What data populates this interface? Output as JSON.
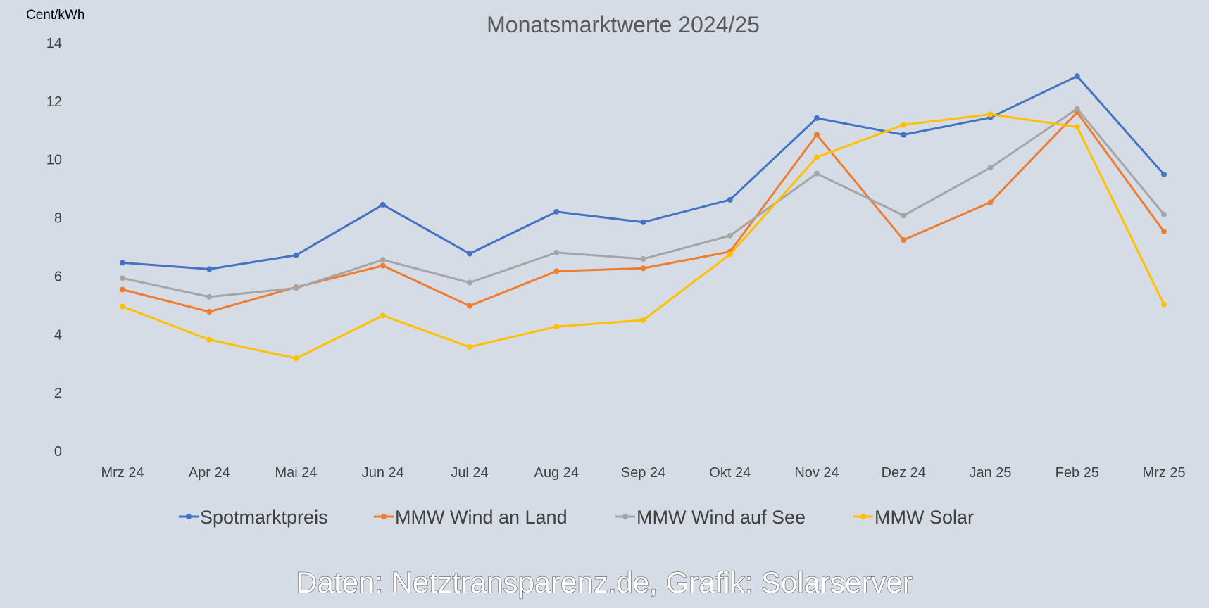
{
  "chart_data": {
    "type": "line",
    "title": "Monatsmarktwerte 2024/25",
    "ylabel": "Cent/kWh",
    "xlabel": "",
    "ylim": [
      0,
      14
    ],
    "yticks": [
      0,
      2,
      4,
      6,
      8,
      10,
      12,
      14
    ],
    "grid": false,
    "legend_position": "bottom",
    "categories": [
      "Mrz 24",
      "Apr 24",
      "Mai 24",
      "Jun 24",
      "Jul 24",
      "Aug 24",
      "Sep 24",
      "Okt 24",
      "Nov 24",
      "Dez 24",
      "Jan 25",
      "Feb 25",
      "Mrz 25"
    ],
    "series": [
      {
        "name": "Spotmarktpreis",
        "color": "#4472c4",
        "values": [
          6.46,
          6.24,
          6.72,
          8.45,
          6.77,
          8.21,
          7.85,
          8.62,
          11.42,
          10.85,
          11.44,
          12.86,
          9.49
        ]
      },
      {
        "name": "MMW Wind an Land",
        "color": "#ed7d31",
        "values": [
          5.54,
          4.78,
          5.62,
          6.36,
          4.98,
          6.17,
          6.27,
          6.84,
          10.85,
          7.24,
          8.53,
          11.62,
          7.53
        ]
      },
      {
        "name": "MMW Wind auf See",
        "color": "#a5a5a5",
        "values": [
          5.93,
          5.29,
          5.59,
          6.56,
          5.78,
          6.81,
          6.59,
          7.39,
          9.52,
          8.08,
          9.72,
          11.74,
          8.12
        ]
      },
      {
        "name": "MMW Solar",
        "color": "#ffc000",
        "values": [
          4.96,
          3.82,
          3.18,
          4.65,
          3.57,
          4.27,
          4.49,
          6.75,
          10.08,
          11.19,
          11.55,
          11.12,
          5.03
        ]
      }
    ]
  },
  "footer": {
    "credit": "Daten: Netztransparenz.de, Grafik: Solarserver"
  }
}
